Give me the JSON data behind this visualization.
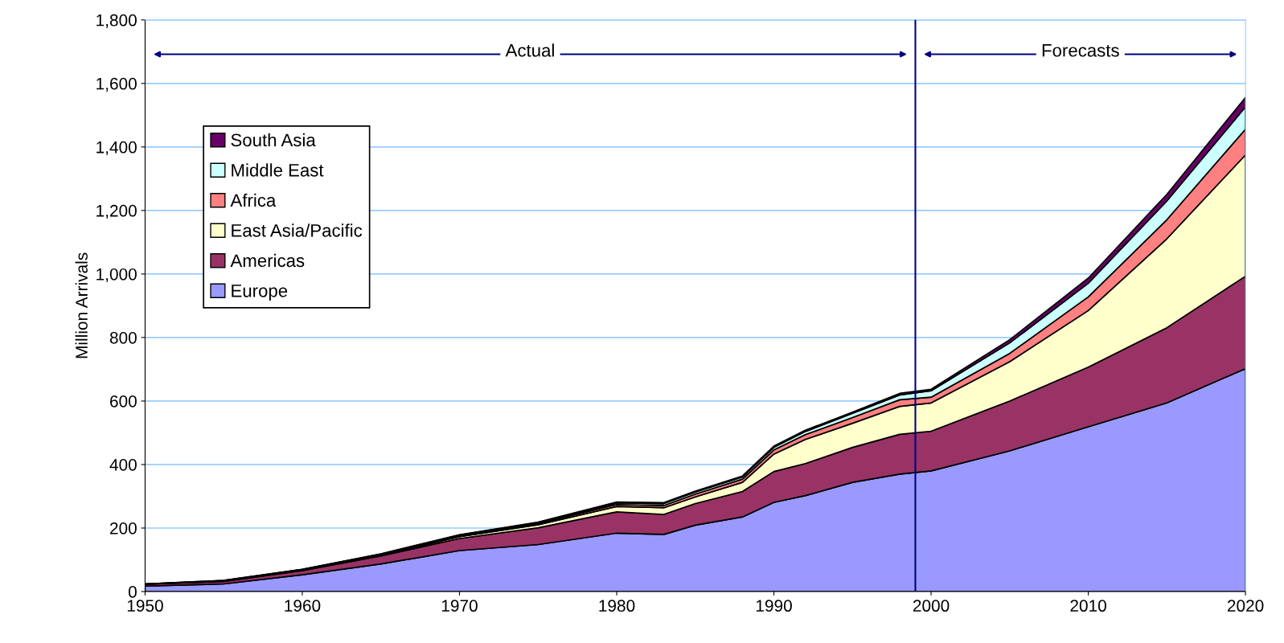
{
  "chart_data": {
    "type": "area",
    "stacked": true,
    "ylabel": "Million Arrivals",
    "x": [
      1950,
      1955,
      1960,
      1965,
      1970,
      1975,
      1980,
      1983,
      1985,
      1988,
      1990,
      1992,
      1995,
      1998,
      2000,
      2005,
      2010,
      2015,
      2020
    ],
    "series": [
      {
        "name": "Europe",
        "color": "#9999ff",
        "values": [
          17,
          24,
          53,
          87,
          129,
          148,
          184,
          180,
          209,
          235,
          281,
          302,
          344,
          370,
          380,
          443,
          519,
          594,
          702
        ]
      },
      {
        "name": "Americas",
        "color": "#993366",
        "values": [
          6,
          8,
          13,
          25,
          38,
          53,
          67,
          63,
          68,
          80,
          97,
          101,
          110,
          125,
          125,
          157,
          188,
          237,
          291
        ]
      },
      {
        "name": "East Asia/Pacific",
        "color": "#ffffcc",
        "values": [
          0,
          1,
          1,
          2,
          6,
          9,
          17,
          21,
          21,
          29,
          55,
          76,
          76,
          88,
          89,
          124,
          178,
          280,
          382
        ]
      },
      {
        "name": "Africa",
        "color": "#ff8080",
        "values": [
          1,
          1,
          2,
          3,
          3,
          4,
          6,
          7,
          9,
          10,
          13,
          15,
          18,
          21,
          18,
          26,
          43,
          60,
          81
        ]
      },
      {
        "name": "Middle East",
        "color": "#ccffff",
        "values": [
          0,
          1,
          1,
          1,
          2,
          3,
          5,
          6,
          6,
          7,
          8,
          10,
          13,
          15,
          20,
          33,
          43,
          59,
          70
        ]
      },
      {
        "name": "South Asia",
        "color": "#660066",
        "values": [
          0,
          0,
          0,
          1,
          1,
          2,
          3,
          3,
          3,
          3,
          4,
          4,
          4,
          5,
          5,
          10,
          16,
          21,
          30
        ]
      }
    ],
    "xlim": [
      1950,
      2020
    ],
    "xticks": [
      1950,
      1960,
      1970,
      1980,
      1990,
      2000,
      2010,
      2020
    ],
    "ylim": [
      0,
      1800
    ],
    "yticks": [
      0,
      200,
      400,
      600,
      800,
      {
        "value": 1000,
        "label": "1,000"
      },
      {
        "value": 1200,
        "label": "1,200"
      },
      {
        "value": 1400,
        "label": "1,400"
      },
      {
        "value": 1600,
        "label": "1,600"
      },
      {
        "value": 1800,
        "label": "1,800"
      }
    ],
    "grid": "y",
    "legend": "top left",
    "ref_lines": [
      {
        "axis": "x",
        "value": 1999,
        "color": "#000080"
      }
    ],
    "annotations": [
      "Actual",
      "Forecasts"
    ]
  }
}
